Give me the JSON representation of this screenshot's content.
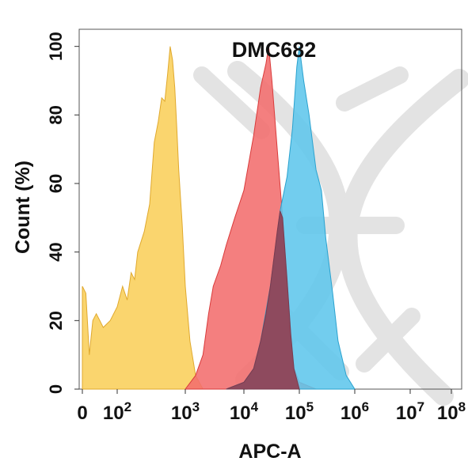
{
  "chart_data": {
    "type": "area",
    "title": "DMC682",
    "xlabel": "APC-A",
    "ylabel": "Count  (%)",
    "x_scale": "biexponential",
    "xlim": [
      0,
      100000000
    ],
    "ylim": [
      0,
      105
    ],
    "x_ticks": [
      {
        "value": 0,
        "base": "0",
        "exp": ""
      },
      {
        "value": 100,
        "base": "10",
        "exp": "2"
      },
      {
        "value": 1000,
        "base": "10",
        "exp": "3"
      },
      {
        "value": 10000,
        "base": "10",
        "exp": "4"
      },
      {
        "value": 100000,
        "base": "10",
        "exp": "5"
      },
      {
        "value": 1000000,
        "base": "10",
        "exp": "6"
      },
      {
        "value": 10000000,
        "base": "10",
        "exp": "7"
      },
      {
        "value": 100000000,
        "base": "10",
        "exp": "8"
      }
    ],
    "y_ticks": [
      0,
      20,
      40,
      60,
      80,
      100
    ],
    "grid": false,
    "watermark": "dna-helix",
    "series": [
      {
        "color": "#f9cf5a",
        "edge": "#e0a92e",
        "points": [
          [
            0,
            0
          ],
          [
            0,
            30
          ],
          [
            10,
            28
          ],
          [
            20,
            10
          ],
          [
            30,
            20
          ],
          [
            40,
            22
          ],
          [
            60,
            18
          ],
          [
            80,
            20
          ],
          [
            100,
            24
          ],
          [
            120,
            30
          ],
          [
            140,
            26
          ],
          [
            160,
            34
          ],
          [
            180,
            32
          ],
          [
            200,
            40
          ],
          [
            250,
            46
          ],
          [
            300,
            54
          ],
          [
            350,
            72
          ],
          [
            400,
            78
          ],
          [
            450,
            85
          ],
          [
            500,
            84
          ],
          [
            550,
            92
          ],
          [
            600,
            100
          ],
          [
            650,
            96
          ],
          [
            700,
            88
          ],
          [
            750,
            76
          ],
          [
            800,
            64
          ],
          [
            900,
            48
          ],
          [
            1000,
            30
          ],
          [
            1200,
            14
          ],
          [
            1500,
            4
          ],
          [
            2000,
            0
          ]
        ]
      },
      {
        "color": "#f26d6d",
        "edge": "#d93b3b",
        "points": [
          [
            1000,
            0
          ],
          [
            1500,
            4
          ],
          [
            2000,
            10
          ],
          [
            2500,
            22
          ],
          [
            3000,
            30
          ],
          [
            4000,
            36
          ],
          [
            5000,
            42
          ],
          [
            7000,
            50
          ],
          [
            10000,
            58
          ],
          [
            15000,
            74
          ],
          [
            20000,
            88
          ],
          [
            25000,
            95
          ],
          [
            28000,
            100
          ],
          [
            32000,
            90
          ],
          [
            40000,
            70
          ],
          [
            50000,
            50
          ],
          [
            60000,
            32
          ],
          [
            70000,
            16
          ],
          [
            80000,
            6
          ],
          [
            100000,
            2
          ],
          [
            200000,
            0
          ]
        ]
      },
      {
        "color": "#5fc6ec",
        "edge": "#2aa2cf",
        "points": [
          [
            5000,
            0
          ],
          [
            10000,
            2
          ],
          [
            15000,
            6
          ],
          [
            20000,
            14
          ],
          [
            30000,
            30
          ],
          [
            45000,
            52
          ],
          [
            60000,
            62
          ],
          [
            75000,
            76
          ],
          [
            90000,
            94
          ],
          [
            100000,
            100
          ],
          [
            120000,
            90
          ],
          [
            150000,
            80
          ],
          [
            200000,
            64
          ],
          [
            250000,
            58
          ],
          [
            300000,
            44
          ],
          [
            400000,
            28
          ],
          [
            500000,
            14
          ],
          [
            700000,
            4
          ],
          [
            1000000,
            0
          ]
        ]
      },
      {
        "color": "#8e4a5e",
        "edge": "#7a3a4e",
        "points": [
          [
            5000,
            0
          ],
          [
            10000,
            2
          ],
          [
            15000,
            6
          ],
          [
            20000,
            14
          ],
          [
            25000,
            22
          ],
          [
            30000,
            30
          ],
          [
            40000,
            46
          ],
          [
            45000,
            52
          ],
          [
            50000,
            50
          ],
          [
            60000,
            32
          ],
          [
            70000,
            16
          ],
          [
            80000,
            6
          ],
          [
            100000,
            0
          ]
        ]
      }
    ]
  }
}
